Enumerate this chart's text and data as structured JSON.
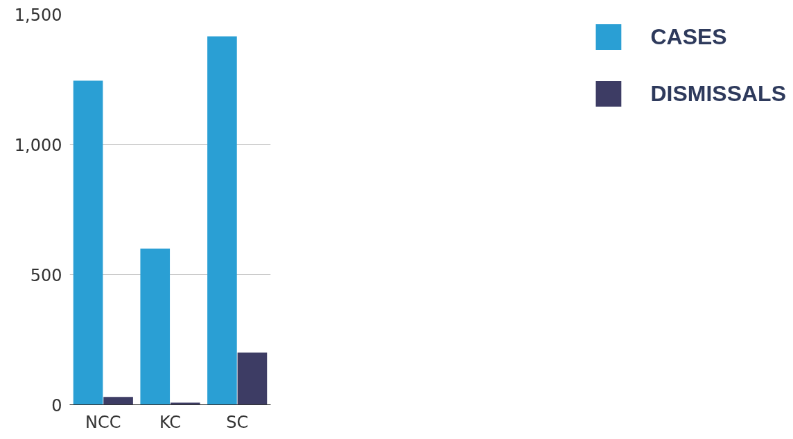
{
  "chart_data": {
    "type": "bar",
    "categories": [
      "NCC",
      "KC",
      "SC"
    ],
    "series": [
      {
        "name": "CASES",
        "color": "#2a9fd4",
        "values": [
          1245,
          600,
          1415
        ]
      },
      {
        "name": "DISMISSALS",
        "color": "#3d3c64",
        "values": [
          30,
          8,
          200
        ]
      }
    ],
    "ylim": [
      0,
      1500
    ],
    "yticks": [
      0,
      {
        "value": 500,
        "label": "500"
      },
      {
        "value": 1000,
        "label": "1,000"
      },
      {
        "value": 1500,
        "label": "1,500"
      }
    ],
    "grid": "y",
    "legend": "right"
  }
}
